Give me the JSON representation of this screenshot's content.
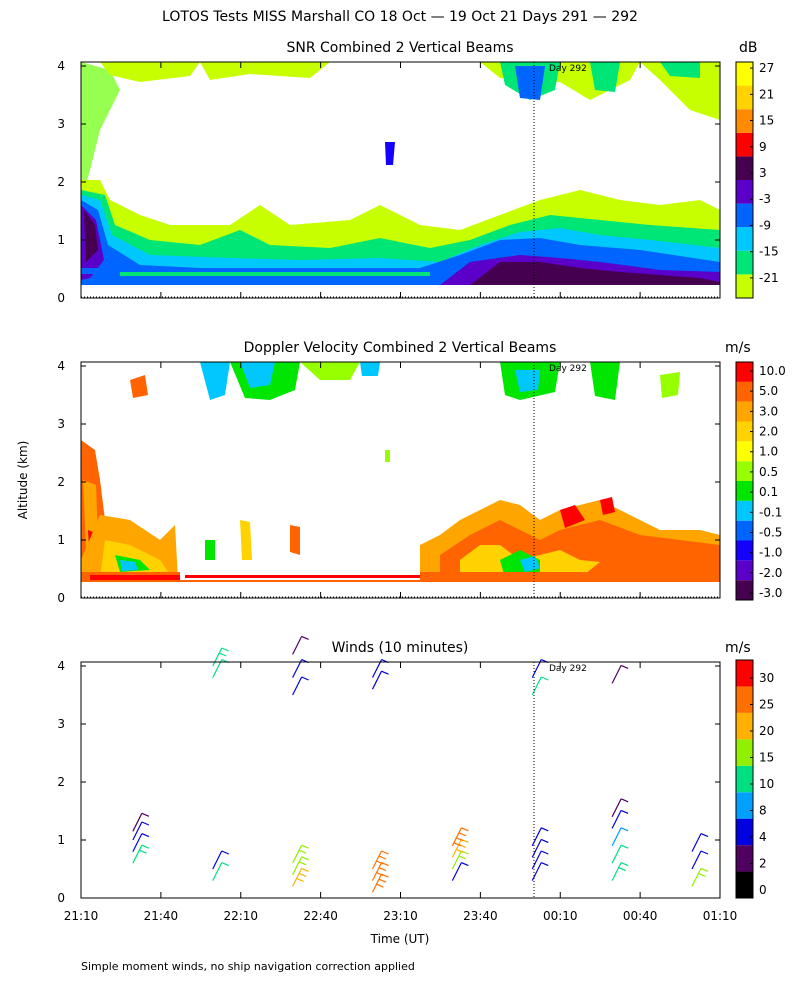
{
  "title": "LOTOS Tests MISS Marshall CO  18 Oct — 19 Oct 21 Days 291 — 292",
  "y_axis_label": "Altitude (km)",
  "x_axis_label": "Time (UT)",
  "footnote": "Simple moment winds, no ship navigation correction applied",
  "day_marker": "Day 292",
  "x_ticks": [
    "21:10",
    "21:40",
    "22:10",
    "22:40",
    "23:10",
    "23:40",
    "00:10",
    "00:40",
    "01:10"
  ],
  "y_ticks": [
    "0",
    "1",
    "2",
    "3",
    "4"
  ],
  "chart_data": [
    {
      "type": "heatmap",
      "title": "SNR Combined 2 Vertical Beams",
      "units": "dB",
      "xlabel": "Time (UT)",
      "ylabel": "Altitude (km)",
      "xlim": [
        "21:10",
        "01:10"
      ],
      "ylim": [
        0,
        4
      ],
      "colorbar_labels": [
        "-21",
        "-15",
        "-9",
        "-3",
        "3",
        "9",
        "15",
        "21",
        "27"
      ],
      "colorbar_colors": [
        "#c8ff00",
        "#00e676",
        "#00c8ff",
        "#0064ff",
        "#5a00c8",
        "#460050",
        "#ff0000",
        "#ff8c00",
        "#ffd200",
        "#ffff00"
      ],
      "annotation": "Day 292 at ~00:00"
    },
    {
      "type": "heatmap",
      "title": "Doppler Velocity Combined 2 Vertical Beams",
      "units": "m/s",
      "xlabel": "Time (UT)",
      "ylabel": "Altitude (km)",
      "xlim": [
        "21:10",
        "01:10"
      ],
      "ylim": [
        0,
        4
      ],
      "colorbar_labels": [
        "10.0",
        "5.0",
        "3.0",
        "2.0",
        "1.0",
        "0.5",
        "0.1",
        "-0.1",
        "-0.5",
        "-1.0",
        "-2.0",
        "-3.0"
      ],
      "colorbar_colors": [
        "#460050",
        "#5a00c8",
        "#1400ff",
        "#0064ff",
        "#00c8ff",
        "#00e600",
        "#96ff00",
        "#ffff00",
        "#ffd200",
        "#ffa500",
        "#ff6400",
        "#ff0000"
      ],
      "annotation": "Day 292 at ~00:00"
    },
    {
      "type": "scatter",
      "title": "Winds (10 minutes)",
      "units": "m/s",
      "xlabel": "Time (UT)",
      "ylabel": "Altitude (km)",
      "xlim": [
        "21:10",
        "01:10"
      ],
      "ylim": [
        0,
        4
      ],
      "colorbar_labels": [
        "0",
        "2",
        "4",
        "8",
        "10",
        "15",
        "20",
        "25",
        "30"
      ],
      "colorbar_colors": [
        "#000000",
        "#500060",
        "#0000e0",
        "#00a0ff",
        "#00e080",
        "#90f000",
        "#ffb000",
        "#ff7000",
        "#ff0000"
      ],
      "annotation": "Day 292 at ~00:00",
      "profiles": [
        {
          "time": "21:40",
          "altitudes": [
            0.6,
            0.8,
            1.0,
            1.15
          ],
          "speed": [
            12,
            6,
            4,
            3
          ]
        },
        {
          "time": "22:10",
          "altitudes": [
            0.3,
            0.5,
            3.8,
            4.0
          ],
          "speed": [
            10,
            6,
            10,
            12
          ]
        },
        {
          "time": "22:40",
          "altitudes": [
            0.2,
            0.4,
            0.6,
            3.5,
            3.8,
            4.2
          ],
          "speed": [
            20,
            18,
            18,
            4,
            4,
            3
          ]
        },
        {
          "time": "23:10",
          "altitudes": [
            0.1,
            0.3,
            0.5,
            3.6,
            3.8
          ],
          "speed": [
            25,
            25,
            25,
            4,
            4
          ]
        },
        {
          "time": "23:40",
          "altitudes": [
            0.3,
            0.5,
            0.7,
            0.9
          ],
          "speed": [
            4,
            15,
            22,
            28
          ]
        },
        {
          "time": "00:10",
          "altitudes": [
            0.3,
            0.5,
            0.7,
            0.9,
            3.5,
            3.8
          ],
          "speed": [
            6,
            4,
            4,
            4,
            10,
            5
          ]
        },
        {
          "time": "00:40",
          "altitudes": [
            0.3,
            0.6,
            0.9,
            1.2,
            1.4,
            3.7
          ],
          "speed": [
            12,
            10,
            8,
            4,
            3,
            3
          ]
        },
        {
          "time": "01:10",
          "altitudes": [
            0.2,
            0.5,
            0.8
          ],
          "speed": [
            15,
            6,
            4
          ]
        }
      ]
    }
  ]
}
